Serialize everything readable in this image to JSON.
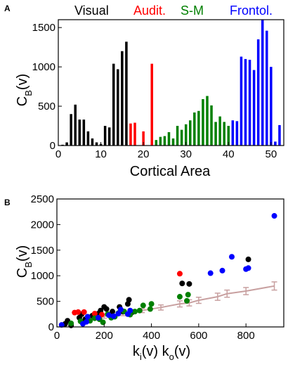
{
  "panels": {
    "a": {
      "letter": "A"
    },
    "b": {
      "letter": "B"
    }
  },
  "colors": {
    "visual": "#000000",
    "audit": "#ff0000",
    "sm": "#008000",
    "frontol": "#0000ff",
    "null_model": "#c8a0a0"
  },
  "chart_data": [
    {
      "type": "bar",
      "xlabel": "Cortical Area",
      "ylabel": "C_B(v)",
      "xlim": [
        0,
        53
      ],
      "ylim": [
        0,
        1600
      ],
      "xticks": [
        0,
        10,
        20,
        30,
        40,
        50
      ],
      "yticks": [
        0,
        500,
        1000,
        1500
      ],
      "group_labels": [
        {
          "name": "Visual",
          "color": "#000000"
        },
        {
          "name": "Audit.",
          "color": "#ff0000"
        },
        {
          "name": "S-M",
          "color": "#008000"
        },
        {
          "name": "Frontol.",
          "color": "#0000ff"
        }
      ],
      "series": [
        {
          "group": "Visual",
          "color": "#000000",
          "x": [
            1,
            2,
            3,
            4,
            5,
            6,
            7,
            8,
            9,
            10,
            11,
            12,
            13,
            14,
            15,
            16
          ],
          "values": [
            10,
            40,
            400,
            520,
            330,
            330,
            180,
            90,
            40,
            20,
            250,
            230,
            1040,
            970,
            1200,
            1320
          ]
        },
        {
          "group": "Audit.",
          "color": "#ff0000",
          "x": [
            17,
            18,
            19,
            20,
            21,
            22
          ],
          "values": [
            280,
            290,
            0,
            180,
            0,
            1040
          ]
        },
        {
          "group": "S-M",
          "color": "#008000",
          "x": [
            23,
            24,
            25,
            26,
            27,
            28,
            29,
            30,
            31,
            32,
            33,
            34,
            35,
            36,
            37,
            38,
            39,
            40
          ],
          "values": [
            70,
            110,
            120,
            170,
            90,
            250,
            200,
            270,
            320,
            420,
            440,
            590,
            630,
            510,
            300,
            370,
            300,
            250
          ]
        },
        {
          "group": "Frontol.",
          "color": "#0000ff",
          "x": [
            41,
            42,
            43,
            44,
            45,
            46,
            47,
            48,
            49,
            50,
            51,
            52
          ],
          "values": [
            320,
            310,
            1130,
            1100,
            1090,
            960,
            1350,
            1650,
            1460,
            1000,
            50,
            260
          ]
        }
      ]
    },
    {
      "type": "scatter",
      "xlabel": "k_i(v)  k_o(v)",
      "ylabel": "C_B(v)",
      "xlim": [
        0,
        960
      ],
      "ylim": [
        0,
        2500
      ],
      "xticks": [
        0,
        200,
        400,
        600,
        800
      ],
      "yticks": [
        0,
        500,
        1000,
        1500,
        2000,
        2500
      ],
      "series": [
        {
          "group": "Visual",
          "color": "#000000",
          "points": [
            [
              35,
              60
            ],
            [
              45,
              120
            ],
            [
              60,
              30
            ],
            [
              95,
              180
            ],
            [
              105,
              250
            ],
            [
              120,
              150
            ],
            [
              150,
              220
            ],
            [
              175,
              260
            ],
            [
              185,
              320
            ],
            [
              200,
              390
            ],
            [
              210,
              350
            ],
            [
              235,
              300
            ],
            [
              265,
              390
            ],
            [
              280,
              300
            ],
            [
              300,
              450
            ],
            [
              305,
              530
            ],
            [
              320,
              290
            ],
            [
              530,
              850
            ],
            [
              560,
              840
            ],
            [
              810,
              1320
            ]
          ]
        },
        {
          "group": "Audit.",
          "color": "#ff0000",
          "points": [
            [
              75,
              280
            ],
            [
              90,
              290
            ],
            [
              115,
              290
            ],
            [
              160,
              260
            ],
            [
              190,
              240
            ],
            [
              520,
              1040
            ]
          ]
        },
        {
          "group": "S-M",
          "color": "#008000",
          "points": [
            [
              60,
              70
            ],
            [
              100,
              110
            ],
            [
              140,
              120
            ],
            [
              160,
              170
            ],
            [
              195,
              90
            ],
            [
              215,
              250
            ],
            [
              245,
              200
            ],
            [
              260,
              270
            ],
            [
              285,
              300
            ],
            [
              310,
              240
            ],
            [
              330,
              300
            ],
            [
              350,
              320
            ],
            [
              365,
              420
            ],
            [
              395,
              350
            ],
            [
              400,
              450
            ],
            [
              520,
              590
            ],
            [
              555,
              630
            ],
            [
              550,
              510
            ],
            [
              230,
              180
            ],
            [
              180,
              150
            ]
          ]
        },
        {
          "group": "Frontol.",
          "color": "#0000ff",
          "points": [
            [
              20,
              40
            ],
            [
              110,
              60
            ],
            [
              130,
              200
            ],
            [
              175,
              180
            ],
            [
              220,
              230
            ],
            [
              260,
              260
            ],
            [
              270,
              340
            ],
            [
              300,
              250
            ],
            [
              310,
              320
            ],
            [
              650,
              1050
            ],
            [
              700,
              1100
            ],
            [
              740,
              1370
            ],
            [
              800,
              1130
            ],
            [
              810,
              1150
            ],
            [
              920,
              2170
            ],
            [
              125,
              100
            ],
            [
              240,
              210
            ]
          ]
        }
      ],
      "null_model": {
        "color": "#c8a0a0",
        "x": [
          120,
          200,
          280,
          360,
          440,
          520,
          560,
          600,
          680,
          720,
          800,
          920
        ],
        "y": [
          150,
          210,
          260,
          320,
          380,
          450,
          470,
          520,
          590,
          650,
          700,
          800
        ],
        "err": [
          40,
          40,
          40,
          40,
          50,
          60,
          60,
          60,
          70,
          70,
          70,
          80
        ]
      }
    }
  ]
}
